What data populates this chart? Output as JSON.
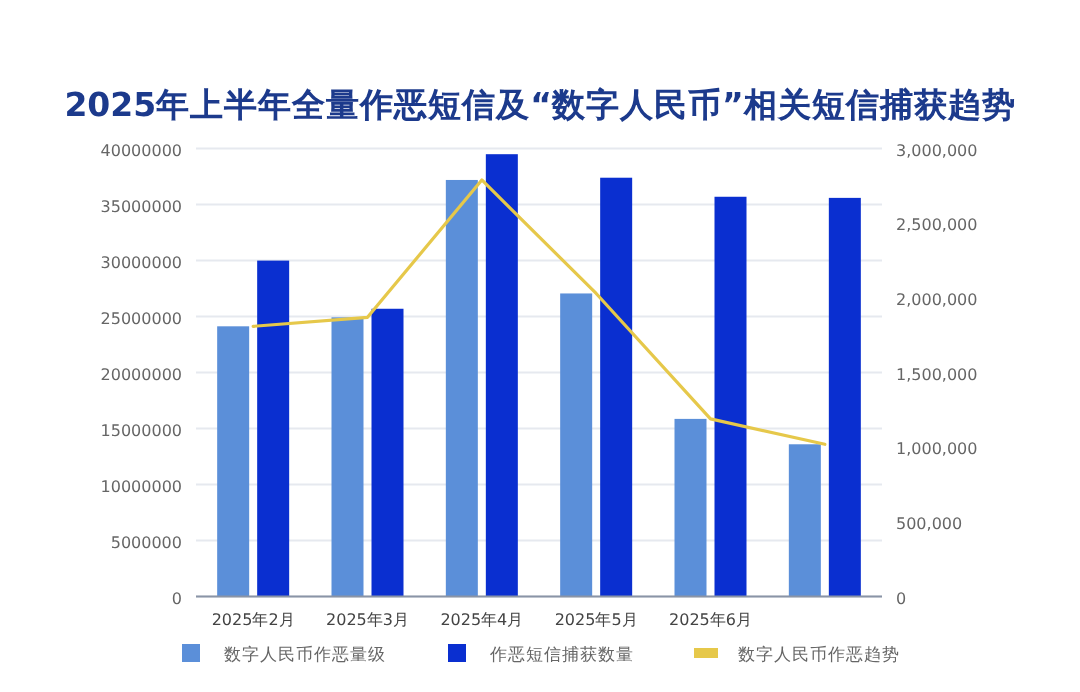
{
  "chart_data": {
    "type": "bar",
    "title": "2025年上半年全量作恶短信及“数字人民币”相关短信捕获趋势",
    "categories": [
      "2025年2月",
      "2025年3月",
      "2025年4月",
      "2025年5月",
      "2025年6月",
      null
    ],
    "series": [
      {
        "name": "数字人民币作恶量级",
        "color": "#5b8fd9",
        "axis": "y2",
        "values": [
          1810000,
          1870000,
          2790000,
          2030000,
          1190000,
          1020000
        ]
      },
      {
        "name": "作恶短信捕获数量",
        "color": "#0a2fd0",
        "values": [
          30000000,
          25700000,
          39500000,
          37400000,
          35700000,
          35600000
        ]
      },
      {
        "name": "数字人民币作恶趋势",
        "type": "line",
        "color": "#e6c84a",
        "axis": "y2",
        "values": [
          1810000,
          1870000,
          2790000,
          2030000,
          1190000,
          1020000
        ]
      }
    ],
    "ylim": [
      0,
      40000000
    ],
    "yticks": [
      0,
      5000000,
      10000000,
      15000000,
      20000000,
      25000000,
      30000000,
      35000000,
      40000000
    ],
    "y2lim": [
      0,
      3000000
    ],
    "y2ticks": [
      0,
      {
        "value": 500000,
        "label": "500,000"
      },
      {
        "value": 1000000,
        "label": "1,000,000"
      },
      {
        "value": 1500000,
        "label": "1,500,000"
      },
      {
        "value": 2000000,
        "label": "2,000,000"
      },
      {
        "value": 2500000,
        "label": "2,500,000"
      },
      {
        "value": 3000000,
        "label": "3,000,000"
      }
    ],
    "grid": "y",
    "legend": "bottom"
  }
}
